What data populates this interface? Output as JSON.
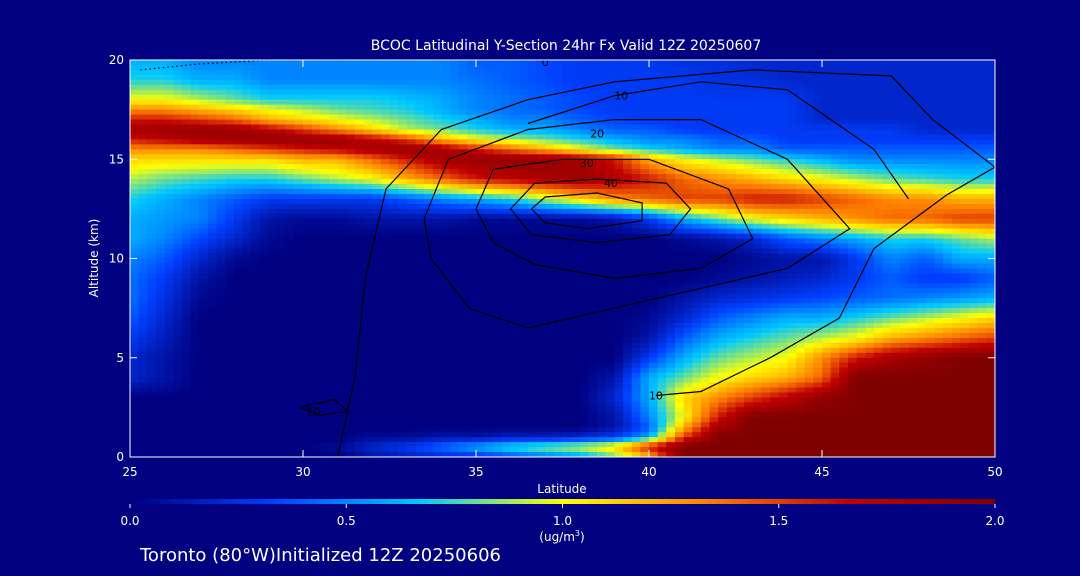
{
  "chart_data": {
    "type": "heatmap",
    "title": "BCOC Latitudinal Y-Section 24hr  Fx Valid 12Z 20250607",
    "xlabel": "Latitude",
    "ylabel": "Altitude (km)",
    "xlim": [
      25,
      50
    ],
    "ylim": [
      0,
      20
    ],
    "xticks": [
      "25",
      "30",
      "35",
      "40",
      "45",
      "50"
    ],
    "yticks": [
      "0",
      "5",
      "10",
      "15",
      "20"
    ],
    "colorbar": {
      "min": 0.0,
      "max": 2.0,
      "ticks": [
        "0.0",
        "0.5",
        "1.0",
        "1.5",
        "2.0"
      ],
      "unit_line1": "1.0",
      "unit_line2": "(ug/m",
      "unit_sup": "3",
      "unit_close": ")",
      "colors": [
        "#000080",
        "#0040ff",
        "#00c8ff",
        "#ffff00",
        "#ff8000",
        "#c00000",
        "#800000"
      ]
    },
    "heatmap": {
      "lat": [
        25,
        26,
        27,
        28,
        29,
        30,
        31,
        32,
        33,
        34,
        35,
        36,
        37,
        38,
        39,
        40,
        41,
        42,
        43,
        44,
        45,
        46,
        47,
        48,
        49,
        50
      ],
      "alt": [
        0,
        0.5,
        1,
        1.5,
        2,
        3,
        4,
        5,
        6,
        7,
        8,
        9,
        10,
        11,
        12,
        13,
        14,
        15,
        15.5,
        16,
        16.5,
        17,
        17.5,
        18,
        19,
        20
      ],
      "values": [
        [
          0.0,
          0.0,
          0.0,
          0.0,
          0.0,
          0.0,
          0.0,
          0.1,
          0.15,
          0.2,
          0.25,
          0.35,
          0.45,
          0.55,
          0.8,
          1.2,
          2.0,
          2.0,
          2.0,
          2.0,
          2.0,
          2.0,
          2.0,
          2.0,
          2.0,
          2.0
        ],
        [
          0.0,
          0.0,
          0.0,
          0.0,
          0.0,
          0.0,
          0.05,
          0.2,
          0.3,
          0.45,
          0.6,
          0.75,
          0.85,
          0.95,
          1.1,
          1.6,
          2.0,
          2.0,
          2.0,
          2.0,
          2.0,
          2.0,
          2.0,
          2.0,
          2.0,
          2.0
        ],
        [
          0.0,
          0.0,
          0.0,
          0.0,
          0.0,
          0.0,
          0.0,
          0.05,
          0.05,
          0.1,
          0.1,
          0.15,
          0.15,
          0.2,
          0.3,
          0.6,
          1.5,
          2.0,
          2.0,
          2.0,
          2.0,
          2.0,
          2.0,
          2.0,
          2.0,
          2.0
        ],
        [
          0.0,
          0.0,
          0.0,
          0.0,
          0.0,
          0.0,
          0.0,
          0.0,
          0.0,
          0.0,
          0.0,
          0.0,
          0.0,
          0.0,
          0.1,
          0.4,
          1.2,
          1.8,
          2.0,
          2.0,
          2.0,
          2.0,
          2.0,
          2.0,
          2.0,
          2.0
        ],
        [
          0.0,
          0.0,
          0.0,
          0.0,
          0.0,
          0.0,
          0.0,
          0.0,
          0.0,
          0.0,
          0.0,
          0.0,
          0.0,
          0.0,
          0.1,
          0.5,
          1.0,
          1.6,
          2.0,
          2.0,
          2.0,
          2.0,
          2.0,
          2.0,
          2.0,
          2.0
        ],
        [
          0.0,
          0.0,
          0.0,
          0.0,
          0.0,
          0.0,
          0.0,
          0.0,
          0.0,
          0.0,
          0.0,
          0.0,
          0.0,
          0.0,
          0.2,
          0.6,
          1.1,
          1.3,
          1.5,
          1.7,
          1.9,
          2.0,
          2.0,
          2.0,
          2.0,
          2.0
        ],
        [
          0.2,
          0.1,
          0.0,
          0.0,
          0.0,
          0.0,
          0.0,
          0.0,
          0.0,
          0.0,
          0.0,
          0.0,
          0.0,
          0.0,
          0.1,
          0.6,
          0.8,
          1.0,
          1.1,
          1.2,
          1.4,
          2.0,
          2.0,
          2.0,
          2.0,
          2.0
        ],
        [
          0.2,
          0.1,
          0.0,
          0.0,
          0.0,
          0.0,
          0.0,
          0.0,
          0.0,
          0.0,
          0.0,
          0.0,
          0.0,
          0.0,
          0.0,
          0.3,
          0.6,
          0.8,
          0.9,
          1.0,
          1.3,
          1.6,
          1.8,
          1.9,
          2.0,
          2.0
        ],
        [
          0.3,
          0.15,
          0.0,
          0.0,
          0.0,
          0.0,
          0.0,
          0.0,
          0.0,
          0.0,
          0.0,
          0.0,
          0.0,
          0.0,
          0.0,
          0.1,
          0.4,
          0.6,
          0.7,
          0.8,
          0.9,
          1.0,
          1.2,
          1.3,
          1.4,
          1.5
        ],
        [
          0.4,
          0.2,
          0.0,
          0.0,
          0.0,
          0.0,
          0.0,
          0.0,
          0.0,
          0.0,
          0.0,
          0.0,
          0.0,
          0.0,
          0.0,
          0.05,
          0.2,
          0.4,
          0.5,
          0.6,
          0.6,
          0.7,
          0.8,
          0.9,
          1.0,
          1.1
        ],
        [
          0.45,
          0.25,
          0.05,
          0.0,
          0.0,
          0.0,
          0.0,
          0.0,
          0.0,
          0.0,
          0.0,
          0.0,
          0.0,
          0.0,
          0.0,
          0.0,
          0.1,
          0.2,
          0.25,
          0.3,
          0.35,
          0.4,
          0.45,
          0.5,
          0.55,
          0.6
        ],
        [
          0.45,
          0.3,
          0.1,
          0.0,
          0.0,
          0.0,
          0.0,
          0.0,
          0.0,
          0.0,
          0.0,
          0.0,
          0.0,
          0.0,
          0.0,
          0.0,
          0.0,
          0.05,
          0.1,
          0.15,
          0.2,
          0.3,
          0.4,
          0.3,
          0.3,
          0.4
        ],
        [
          0.5,
          0.4,
          0.2,
          0.05,
          0.0,
          0.0,
          0.0,
          0.0,
          0.0,
          0.0,
          0.0,
          0.0,
          0.0,
          0.0,
          0.0,
          0.0,
          0.0,
          0.0,
          0.05,
          0.1,
          0.1,
          0.3,
          0.5,
          0.4,
          0.6,
          0.6
        ],
        [
          0.6,
          0.5,
          0.35,
          0.2,
          0.05,
          0.0,
          0.0,
          0.0,
          0.0,
          0.0,
          0.0,
          0.0,
          0.0,
          0.0,
          0.0,
          0.0,
          0.05,
          0.1,
          0.2,
          0.4,
          0.5,
          0.6,
          0.7,
          0.7,
          0.8,
          0.9
        ],
        [
          0.6,
          0.55,
          0.5,
          0.3,
          0.1,
          0.05,
          0.05,
          0.1,
          0.1,
          0.1,
          0.05,
          0.05,
          0.05,
          0.05,
          0.1,
          0.3,
          0.6,
          0.8,
          1.0,
          1.1,
          1.2,
          1.3,
          1.4,
          1.4,
          1.5,
          1.5
        ],
        [
          0.7,
          0.6,
          0.5,
          0.4,
          0.3,
          0.3,
          0.3,
          0.3,
          0.4,
          0.5,
          0.6,
          0.7,
          0.9,
          1.1,
          1.3,
          1.4,
          1.5,
          1.5,
          1.6,
          1.6,
          1.5,
          1.4,
          1.3,
          1.3,
          1.2,
          1.2
        ],
        [
          0.9,
          0.8,
          0.75,
          0.7,
          0.7,
          0.8,
          0.9,
          1.0,
          1.2,
          1.4,
          1.6,
          1.7,
          1.8,
          1.85,
          1.75,
          1.6,
          1.4,
          1.3,
          1.2,
          1.1,
          1.0,
          0.9,
          0.8,
          0.75,
          0.7,
          0.7
        ],
        [
          1.1,
          1.1,
          1.1,
          1.1,
          1.1,
          1.2,
          1.2,
          1.4,
          1.6,
          1.8,
          1.9,
          1.9,
          1.9,
          1.8,
          1.6,
          1.2,
          1.0,
          0.9,
          0.8,
          0.7,
          0.6,
          0.5,
          0.5,
          0.5,
          0.5,
          0.5
        ],
        [
          1.3,
          1.3,
          1.3,
          1.4,
          1.5,
          1.6,
          1.7,
          1.8,
          1.9,
          1.8,
          1.6,
          1.4,
          1.2,
          1.0,
          0.8,
          0.7,
          0.6,
          0.5,
          0.5,
          0.4,
          0.4,
          0.4,
          0.4,
          0.4,
          0.4,
          0.4
        ],
        [
          1.6,
          1.7,
          1.8,
          1.85,
          1.9,
          1.9,
          1.85,
          1.7,
          1.5,
          1.2,
          1.0,
          0.9,
          0.8,
          0.7,
          0.6,
          0.5,
          0.5,
          0.4,
          0.4,
          0.3,
          0.3,
          0.3,
          0.3,
          0.3,
          0.3,
          0.3
        ],
        [
          1.8,
          1.85,
          1.9,
          1.85,
          1.7,
          1.5,
          1.3,
          1.1,
          0.9,
          0.8,
          0.7,
          0.6,
          0.6,
          0.5,
          0.4,
          0.4,
          0.3,
          0.3,
          0.3,
          0.3,
          0.3,
          0.3,
          0.3,
          0.2,
          0.2,
          0.2
        ],
        [
          1.6,
          1.6,
          1.5,
          1.4,
          1.2,
          1.1,
          1.0,
          0.9,
          0.8,
          0.7,
          0.6,
          0.5,
          0.5,
          0.4,
          0.35,
          0.3,
          0.3,
          0.3,
          0.3,
          0.3,
          0.2,
          0.2,
          0.2,
          0.2,
          0.2,
          0.2
        ],
        [
          1.3,
          1.3,
          1.2,
          1.1,
          1.0,
          0.9,
          0.8,
          0.75,
          0.7,
          0.6,
          0.5,
          0.45,
          0.4,
          0.35,
          0.3,
          0.3,
          0.3,
          0.3,
          0.3,
          0.3,
          0.2,
          0.2,
          0.2,
          0.2,
          0.2,
          0.2
        ],
        [
          1.0,
          1.0,
          0.9,
          0.8,
          0.7,
          0.7,
          0.7,
          0.7,
          0.65,
          0.6,
          0.5,
          0.45,
          0.4,
          0.35,
          0.3,
          0.3,
          0.3,
          0.3,
          0.3,
          0.3,
          0.2,
          0.2,
          0.2,
          0.2,
          0.2,
          0.2
        ],
        [
          0.7,
          0.7,
          0.6,
          0.6,
          0.5,
          0.5,
          0.5,
          0.5,
          0.5,
          0.5,
          0.45,
          0.4,
          0.35,
          0.3,
          0.3,
          0.3,
          0.3,
          0.25,
          0.25,
          0.2,
          0.2,
          0.2,
          0.2,
          0.2,
          0.2,
          0.2
        ],
        [
          0.6,
          0.6,
          0.5,
          0.5,
          0.5,
          0.5,
          0.5,
          0.5,
          0.5,
          0.5,
          0.4,
          0.4,
          0.35,
          0.3,
          0.3,
          0.3,
          0.25,
          0.25,
          0.2,
          0.2,
          0.2,
          0.2,
          0.2,
          0.2,
          0.2,
          0.2
        ]
      ]
    },
    "contours": [
      {
        "level": "0",
        "label": "0",
        "dotted": true,
        "label_at": [
          37,
          19.9
        ],
        "points": [
          [
            25.3,
            19.5
          ],
          [
            27,
            19.8
          ],
          [
            29,
            20
          ],
          [
            37,
            20
          ],
          [
            45,
            20
          ],
          [
            50,
            20
          ]
        ]
      },
      {
        "level": "10",
        "label": "10",
        "label_at": [
          40.2,
          3.1
        ],
        "points": [
          [
            31,
            0
          ],
          [
            31.5,
            4
          ],
          [
            31.8,
            9
          ],
          [
            32.4,
            13.5
          ],
          [
            34,
            16.5
          ],
          [
            36.5,
            18
          ],
          [
            39,
            18.9
          ],
          [
            43,
            19.5
          ],
          [
            47,
            19.2
          ],
          [
            48.2,
            17
          ],
          [
            50,
            14.6
          ],
          [
            48.6,
            13.2
          ],
          [
            46.5,
            10.5
          ],
          [
            45.5,
            7
          ],
          [
            43.5,
            5
          ],
          [
            41.5,
            3.3
          ],
          [
            40.2,
            3.1
          ]
        ]
      },
      {
        "level": "10b",
        "label": "10",
        "label_at": [
          39.2,
          18.2
        ],
        "points": [
          [
            36.5,
            16.8
          ],
          [
            39,
            18.2
          ],
          [
            41.5,
            18.9
          ],
          [
            44,
            18.5
          ],
          [
            46.5,
            15.5
          ],
          [
            47.5,
            13
          ]
        ]
      },
      {
        "level": "20",
        "label": "20",
        "label_at": [
          38.5,
          16.3
        ],
        "points": [
          [
            33.5,
            12
          ],
          [
            34.2,
            15
          ],
          [
            36.5,
            16.5
          ],
          [
            39,
            17
          ],
          [
            41.5,
            17
          ],
          [
            44,
            15
          ],
          [
            45.8,
            11.5
          ],
          [
            44,
            9.5
          ],
          [
            41.5,
            8.5
          ],
          [
            39,
            7.5
          ],
          [
            36.5,
            6.5
          ],
          [
            34.8,
            7.5
          ],
          [
            33.7,
            10
          ],
          [
            33.5,
            12
          ]
        ]
      },
      {
        "level": "30",
        "label": "30",
        "label_at": [
          38.2,
          14.8
        ],
        "points": [
          [
            35,
            12.5
          ],
          [
            35.5,
            14.5
          ],
          [
            37.5,
            15
          ],
          [
            40,
            15
          ],
          [
            42.3,
            13.5
          ],
          [
            43,
            11
          ],
          [
            41.5,
            9.5
          ],
          [
            39,
            9
          ],
          [
            36.7,
            9.7
          ],
          [
            35.5,
            10.8
          ],
          [
            35,
            12.5
          ]
        ]
      },
      {
        "level": "40",
        "label": "40",
        "label_at": [
          38.9,
          13.8
        ],
        "points": [
          [
            36,
            12.5
          ],
          [
            36.7,
            13.8
          ],
          [
            38.5,
            14
          ],
          [
            40.5,
            13.8
          ],
          [
            41.2,
            12.5
          ],
          [
            40.6,
            11.2
          ],
          [
            38.5,
            10.8
          ],
          [
            36.6,
            11.2
          ],
          [
            36,
            12.5
          ]
        ]
      },
      {
        "level": "45",
        "label": "",
        "label_at": [
          37.5,
          12.5
        ],
        "points": [
          [
            36.6,
            12.5
          ],
          [
            37,
            13.1
          ],
          [
            38.5,
            13.3
          ],
          [
            39.8,
            12.8
          ],
          [
            39.8,
            11.9
          ],
          [
            38.2,
            11.5
          ],
          [
            37,
            11.8
          ],
          [
            36.6,
            12.5
          ]
        ]
      },
      {
        "level": "10c",
        "label": "10",
        "label_at": [
          30.3,
          2.3
        ],
        "points": [
          [
            29.9,
            2.5
          ],
          [
            30.9,
            2.9
          ],
          [
            31.3,
            2.3
          ],
          [
            30.5,
            2.1
          ],
          [
            29.9,
            2.5
          ]
        ]
      }
    ]
  },
  "footer_text": "Toronto (80°W)Initialized 12Z 20250606"
}
